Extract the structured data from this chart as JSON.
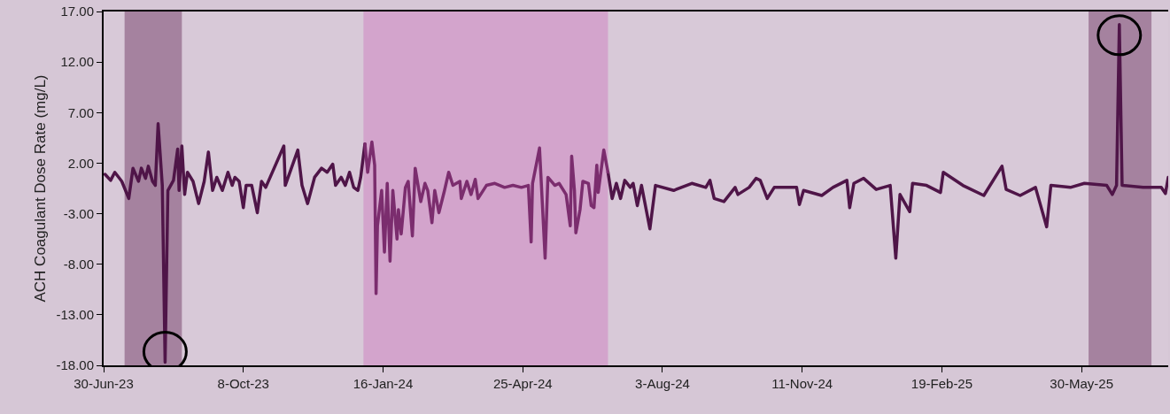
{
  "chart_data": {
    "type": "line",
    "ylabel": "ACH Coagulant Dose Rate (mg/L)",
    "xlim": [
      "2023-06-30",
      "2025-07-31"
    ],
    "xticks": [
      {
        "value": "2023-06-30",
        "label": "30-Jun-23"
      },
      {
        "value": "2023-10-08",
        "label": "8-Oct-23"
      },
      {
        "value": "2024-01-16",
        "label": "16-Jan-24"
      },
      {
        "value": "2024-04-25",
        "label": "25-Apr-24"
      },
      {
        "value": "2024-08-03",
        "label": "3-Aug-24"
      },
      {
        "value": "2024-11-11",
        "label": "11-Nov-24"
      },
      {
        "value": "2025-02-19",
        "label": "19-Feb-25"
      },
      {
        "value": "2025-05-30",
        "label": "30-May-25"
      }
    ],
    "ylim": [
      -18,
      17
    ],
    "yticks": [
      {
        "value": -18,
        "label": "-18.00"
      },
      {
        "value": -13,
        "label": "-13.00"
      },
      {
        "value": -8,
        "label": "-8.00"
      },
      {
        "value": -3,
        "label": "-3.00"
      },
      {
        "value": 2,
        "label": "2.00"
      },
      {
        "value": 7,
        "label": "7.00"
      },
      {
        "value": 12,
        "label": "12.00"
      },
      {
        "value": 17,
        "label": "17.00"
      }
    ],
    "grid": false,
    "marker": "none",
    "line_style": "solid",
    "bands": [
      {
        "axis": "x",
        "from": "2023-07-15",
        "to": "2023-08-25",
        "color": "#a5829f"
      },
      {
        "axis": "x",
        "from": "2024-01-02",
        "to": "2024-06-25",
        "color": "#d3a4cc"
      },
      {
        "axis": "x",
        "from": "2025-06-04",
        "to": "2025-07-19",
        "color": "#a5829f"
      }
    ],
    "series": [
      {
        "color": "#4f1548",
        "x": [
          "2023-07-01",
          "2023-07-05",
          "2023-07-08",
          "2023-07-13",
          "2023-07-18",
          "2023-07-21",
          "2023-07-25",
          "2023-07-27",
          "2023-07-30",
          "2023-08-01",
          "2023-08-04",
          "2023-08-06",
          "2023-08-08",
          "2023-08-11",
          "2023-08-13",
          "2023-08-15",
          "2023-08-19",
          "2023-08-22",
          "2023-08-23",
          "2023-08-25",
          "2023-08-27",
          "2023-08-29",
          "2023-09-02",
          "2023-09-06",
          "2023-09-10",
          "2023-09-13",
          "2023-09-16",
          "2023-09-19",
          "2023-09-23",
          "2023-09-27",
          "2023-09-30",
          "2023-10-02",
          "2023-10-05",
          "2023-10-08",
          "2023-10-10",
          "2023-10-14",
          "2023-10-18",
          "2023-10-21",
          "2023-10-24",
          "2023-11-06",
          "2023-11-07",
          "2023-11-16",
          "2023-11-19",
          "2023-11-23",
          "2023-11-28",
          "2023-12-03",
          "2023-12-07",
          "2023-12-11",
          "2023-12-13",
          "2023-12-17",
          "2023-12-20",
          "2023-12-23",
          "2023-12-26",
          "2023-12-29",
          "2023-12-31",
          "2024-01-03",
          null,
          "2024-06-25",
          "2024-06-28",
          "2024-07-01",
          "2024-07-04",
          "2024-07-07",
          "2024-07-11",
          "2024-07-13",
          "2024-07-16",
          "2024-07-19",
          "2024-07-25",
          "2024-07-29",
          "2024-08-11",
          "2024-08-24",
          "2024-09-03",
          "2024-09-06",
          "2024-09-09",
          "2024-09-16",
          "2024-09-24",
          "2024-09-26",
          "2024-10-04",
          "2024-10-09",
          "2024-10-12",
          "2024-10-17",
          "2024-10-22",
          "2024-11-07",
          "2024-11-09",
          "2024-11-12",
          "2024-11-25",
          "2024-12-03",
          "2024-12-13",
          "2024-12-15",
          "2024-12-18",
          "2024-12-25",
          "2025-01-03",
          "2025-01-13",
          "2025-01-17",
          "2025-01-20",
          "2025-01-27",
          "2025-01-29",
          "2025-02-08",
          "2025-02-18",
          "2025-02-20",
          "2025-03-06",
          "2025-03-21",
          "2025-04-03",
          "2025-04-06",
          "2025-04-16",
          "2025-04-27",
          "2025-05-05",
          "2025-05-08",
          "2025-05-22",
          "2025-06-01",
          "2025-06-17",
          "2025-06-21",
          "2025-06-24",
          "2025-06-26",
          "2025-06-28",
          "2025-07-13",
          "2025-07-26",
          "2025-07-29",
          "2025-07-31"
        ],
        "values": [
          0.9,
          0.3,
          1.1,
          0.2,
          -1.5,
          1.5,
          0.2,
          1.5,
          0.5,
          1.7,
          0.2,
          -0.2,
          5.9,
          -0.2,
          -17.7,
          -0.7,
          0.3,
          3.4,
          -0.7,
          3.7,
          -1.1,
          1.1,
          0.2,
          -2.0,
          0.2,
          3.1,
          -0.7,
          0.6,
          -0.7,
          1.1,
          -0.2,
          0.6,
          0.2,
          -2.4,
          -0.2,
          -0.2,
          -2.9,
          0.2,
          -0.4,
          3.7,
          -0.2,
          3.3,
          -0.2,
          -2.0,
          0.6,
          1.5,
          1.1,
          1.9,
          -0.2,
          0.6,
          -0.2,
          1.1,
          -0.4,
          -0.7,
          0.6,
          3.9,
          null,
          1.1,
          -1.5,
          0.0,
          -1.5,
          0.3,
          -0.4,
          0.0,
          -2.2,
          -0.2,
          -4.5,
          -0.2,
          -0.7,
          0.0,
          -0.4,
          0.3,
          -1.5,
          -1.8,
          -0.4,
          -1.1,
          -0.4,
          0.5,
          0.3,
          -1.5,
          -0.4,
          -0.4,
          -2.1,
          -0.7,
          -1.2,
          -0.4,
          0.3,
          -2.4,
          0.0,
          0.5,
          -0.6,
          -0.2,
          -7.4,
          -1.1,
          -2.8,
          0.0,
          -0.2,
          -0.9,
          1.1,
          -0.2,
          -1.2,
          1.7,
          -0.6,
          -1.2,
          -0.4,
          -4.3,
          -0.2,
          -0.4,
          0.0,
          -0.2,
          -1.1,
          -0.2,
          15.7,
          -0.2,
          -0.4,
          -0.4,
          -1.0,
          0.6
        ]
      },
      {
        "color": "#7b2d6e",
        "x": [
          "2024-01-03",
          "2024-01-05",
          "2024-01-08",
          "2024-01-10",
          "2024-01-11",
          "2024-01-12",
          "2024-01-15",
          "2024-01-17",
          "2024-01-19",
          "2024-01-21",
          "2024-01-23",
          "2024-01-26",
          "2024-01-27",
          "2024-01-29",
          "2024-02-01",
          "2024-02-03",
          "2024-02-06",
          "2024-02-08",
          "2024-02-12",
          "2024-02-15",
          "2024-02-17",
          "2024-02-20",
          "2024-02-22",
          "2024-02-25",
          "2024-02-29",
          "2024-03-03",
          "2024-03-06",
          "2024-03-11",
          "2024-03-12",
          "2024-03-16",
          "2024-03-19",
          "2024-03-22",
          "2024-03-24",
          "2024-03-30",
          "2024-04-05",
          "2024-04-12",
          "2024-04-18",
          "2024-04-24",
          "2024-04-29",
          "2024-05-01",
          "2024-05-02",
          "2024-05-07",
          "2024-05-11",
          "2024-05-13",
          "2024-05-18",
          "2024-05-21",
          "2024-05-26",
          "2024-05-29",
          "2024-05-30",
          "2024-06-01",
          "2024-06-02",
          "2024-06-05",
          "2024-06-07",
          "2024-06-11",
          "2024-06-13",
          "2024-06-15",
          "2024-06-17",
          "2024-06-18",
          "2024-06-22",
          "2024-06-25"
        ],
        "values": [
          3.9,
          1.1,
          4.1,
          1.8,
          -10.9,
          -4.2,
          -0.7,
          -6.8,
          0.0,
          -7.7,
          -0.7,
          -5.5,
          -2.6,
          -5.0,
          -0.4,
          0.2,
          -5.2,
          1.5,
          -1.8,
          0.0,
          -0.7,
          -3.9,
          -0.7,
          -2.9,
          -0.7,
          1.1,
          -0.2,
          0.2,
          -1.5,
          0.2,
          -1.1,
          0.4,
          -1.5,
          -0.2,
          0.0,
          -0.4,
          -0.2,
          -0.4,
          -0.2,
          -5.8,
          0.0,
          3.5,
          -7.4,
          0.6,
          -0.2,
          0.0,
          -1.1,
          -4.2,
          2.7,
          -0.7,
          -4.9,
          -2.6,
          0.2,
          0.0,
          -2.2,
          -2.4,
          1.8,
          -0.9,
          3.3,
          1.1
        ]
      }
    ]
  }
}
